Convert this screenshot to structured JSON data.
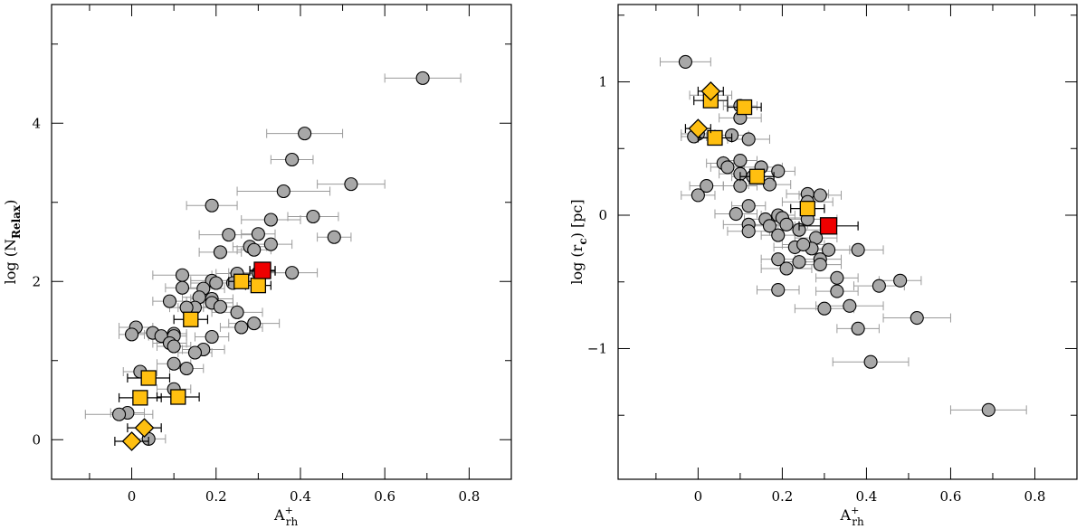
{
  "colors": {
    "grey": "#a8a8a8",
    "orange": "#ffbf10",
    "red": "#ee0000",
    "errgrey": "#9a9a9a"
  },
  "chart_data": [
    {
      "type": "scatter",
      "id": "left",
      "xlabel_main": "A",
      "xlabel_sup": "+",
      "xlabel_sub": "rh",
      "ylabel_pre": "log (N",
      "ylabel_sub": "Relax",
      "ylabel_post": ")",
      "xlim": [
        -0.19,
        0.9
      ],
      "ylim": [
        -0.5,
        5.5
      ],
      "xticks": [
        0,
        0.2,
        0.4,
        0.6,
        0.8
      ],
      "xtick_labels": [
        "0",
        "0.2",
        "0.4",
        "0.6",
        "0.8"
      ],
      "xminor": [
        -0.1,
        0.1,
        0.3,
        0.5,
        0.7,
        0.9
      ],
      "yticks": [
        0,
        2,
        4
      ],
      "ytick_labels": [
        "0",
        "2",
        "4"
      ],
      "yminor": [
        1,
        3,
        5
      ],
      "grey_points": [
        [
          0.69,
          4.57,
          0.09
        ],
        [
          0.41,
          3.87,
          0.09
        ],
        [
          0.38,
          3.54,
          0.05
        ],
        [
          0.36,
          3.14,
          0.11
        ],
        [
          0.52,
          3.23,
          0.08
        ],
        [
          0.19,
          2.96,
          0.06
        ],
        [
          0.33,
          2.78,
          0.07
        ],
        [
          0.43,
          2.82,
          0.06
        ],
        [
          0.48,
          2.56,
          0.04
        ],
        [
          0.33,
          2.47,
          0.05
        ],
        [
          0.3,
          2.6,
          0.04
        ],
        [
          0.28,
          2.44,
          0.04
        ],
        [
          0.29,
          2.4,
          0.04
        ],
        [
          0.23,
          2.59,
          0.07
        ],
        [
          0.21,
          2.37,
          0.05
        ],
        [
          0.38,
          2.11,
          0.06
        ],
        [
          0.3,
          2.11,
          0.07
        ],
        [
          0.25,
          2.1,
          0.05
        ],
        [
          0.24,
          1.98,
          0.06
        ],
        [
          0.12,
          2.08,
          0.07
        ],
        [
          0.19,
          2.01,
          0.05
        ],
        [
          0.2,
          1.98,
          0.06
        ],
        [
          0.17,
          1.91,
          0.05
        ],
        [
          0.19,
          1.78,
          0.05
        ],
        [
          0.12,
          1.92,
          0.04
        ],
        [
          0.16,
          1.8,
          0.04
        ],
        [
          0.19,
          1.73,
          0.05
        ],
        [
          0.09,
          1.75,
          0.04
        ],
        [
          0.21,
          1.68,
          0.04
        ],
        [
          0.15,
          1.67,
          0.04
        ],
        [
          0.13,
          1.67,
          0.04
        ],
        [
          0.25,
          1.61,
          0.06
        ],
        [
          0.29,
          1.47,
          0.06
        ],
        [
          0.26,
          1.42,
          0.05
        ],
        [
          0.01,
          1.42,
          0.04
        ],
        [
          0.05,
          1.35,
          0.04
        ],
        [
          0.07,
          1.31,
          0.03
        ],
        [
          0.1,
          1.34,
          0.03
        ],
        [
          0.0,
          1.33,
          0.03
        ],
        [
          0.1,
          1.31,
          0.03
        ],
        [
          0.19,
          1.3,
          0.04
        ],
        [
          0.09,
          1.22,
          0.04
        ],
        [
          0.17,
          1.14,
          0.05
        ],
        [
          0.15,
          1.1,
          0.04
        ],
        [
          0.1,
          1.18,
          0.04
        ],
        [
          0.1,
          0.96,
          0.04
        ],
        [
          0.13,
          0.9,
          0.04
        ],
        [
          0.02,
          0.86,
          0.04
        ],
        [
          0.1,
          0.64,
          0.04
        ],
        [
          -0.01,
          0.34,
          0.04
        ],
        [
          -0.03,
          0.32,
          0.08
        ],
        [
          0.04,
          0.01,
          0.04
        ]
      ],
      "orange_squares": [
        [
          0.31,
          2.13,
          0.03
        ],
        [
          0.26,
          2.0,
          0.03
        ],
        [
          0.3,
          1.95,
          0.03
        ],
        [
          0.14,
          1.52,
          0.04
        ],
        [
          0.04,
          0.78,
          0.05
        ],
        [
          0.02,
          0.53,
          0.05
        ],
        [
          0.11,
          0.54,
          0.05
        ]
      ],
      "orange_diamonds": [
        [
          0.03,
          0.15,
          0.04
        ],
        [
          0.0,
          -0.02,
          0.04
        ]
      ],
      "red_squares": [
        [
          0.31,
          2.14,
          0.03
        ]
      ]
    },
    {
      "type": "scatter",
      "id": "right",
      "xlabel_main": "A",
      "xlabel_sup": "+",
      "xlabel_sub": "rh",
      "ylabel_pre": "log (r",
      "ylabel_sub": "c",
      "ylabel_post": ") [pc]",
      "xlim": [
        -0.19,
        0.9
      ],
      "ylim": [
        -1.98,
        1.58
      ],
      "xticks": [
        0,
        0.2,
        0.4,
        0.6,
        0.8
      ],
      "xtick_labels": [
        "0",
        "0.2",
        "0.4",
        "0.6",
        "0.8"
      ],
      "xminor": [
        -0.1,
        0.1,
        0.3,
        0.5,
        0.7,
        0.9
      ],
      "yticks": [
        -1,
        0,
        1
      ],
      "ytick_labels": [
        "−1",
        "0",
        "1"
      ],
      "yminor": [
        -1.5,
        -0.5,
        0.5,
        1.5
      ],
      "grey_points": [
        [
          -0.03,
          1.15,
          0.06
        ],
        [
          0.03,
          0.9,
          0.05
        ],
        [
          0.1,
          0.73,
          0.05
        ],
        [
          0.1,
          0.82,
          0.04
        ],
        [
          0.08,
          0.6,
          0.04
        ],
        [
          0.0,
          0.61,
          0.04
        ],
        [
          -0.01,
          0.59,
          0.03
        ],
        [
          0.12,
          0.57,
          0.05
        ],
        [
          0.06,
          0.39,
          0.04
        ],
        [
          0.07,
          0.36,
          0.04
        ],
        [
          0.1,
          0.41,
          0.04
        ],
        [
          0.1,
          0.31,
          0.05
        ],
        [
          0.15,
          0.36,
          0.05
        ],
        [
          0.19,
          0.33,
          0.04
        ],
        [
          0.13,
          0.29,
          0.05
        ],
        [
          0.17,
          0.23,
          0.05
        ],
        [
          0.02,
          0.22,
          0.04
        ],
        [
          0.1,
          0.22,
          0.04
        ],
        [
          0.0,
          0.15,
          0.04
        ],
        [
          0.26,
          0.16,
          0.05
        ],
        [
          0.29,
          0.15,
          0.05
        ],
        [
          0.26,
          0.1,
          0.06
        ],
        [
          0.12,
          0.07,
          0.04
        ],
        [
          0.09,
          0.01,
          0.05
        ],
        [
          0.19,
          0.0,
          0.04
        ],
        [
          0.2,
          -0.02,
          0.05
        ],
        [
          0.16,
          -0.03,
          0.05
        ],
        [
          0.26,
          -0.03,
          0.07
        ],
        [
          0.12,
          -0.07,
          0.06
        ],
        [
          0.17,
          -0.08,
          0.06
        ],
        [
          0.21,
          -0.07,
          0.05
        ],
        [
          0.24,
          -0.11,
          0.05
        ],
        [
          0.12,
          -0.12,
          0.05
        ],
        [
          0.19,
          -0.15,
          0.04
        ],
        [
          0.28,
          -0.17,
          0.05
        ],
        [
          0.23,
          -0.24,
          0.05
        ],
        [
          0.27,
          -0.25,
          0.04
        ],
        [
          0.25,
          -0.22,
          0.05
        ],
        [
          0.31,
          -0.26,
          0.05
        ],
        [
          0.38,
          -0.26,
          0.06
        ],
        [
          0.19,
          -0.33,
          0.04
        ],
        [
          0.29,
          -0.33,
          0.05
        ],
        [
          0.24,
          -0.35,
          0.05
        ],
        [
          0.29,
          -0.37,
          0.05
        ],
        [
          0.21,
          -0.4,
          0.06
        ],
        [
          0.33,
          -0.47,
          0.05
        ],
        [
          0.48,
          -0.49,
          0.05
        ],
        [
          0.43,
          -0.53,
          0.06
        ],
        [
          0.19,
          -0.56,
          0.05
        ],
        [
          0.33,
          -0.57,
          0.05
        ],
        [
          0.36,
          -0.68,
          0.08
        ],
        [
          0.3,
          -0.7,
          0.07
        ],
        [
          0.52,
          -0.77,
          0.08
        ],
        [
          0.38,
          -0.85,
          0.05
        ],
        [
          0.41,
          -1.1,
          0.09
        ],
        [
          0.69,
          -1.46,
          0.09
        ]
      ],
      "orange_squares": [
        [
          0.11,
          0.81,
          0.04
        ],
        [
          0.03,
          0.86,
          0.04
        ],
        [
          0.04,
          0.58,
          0.04
        ],
        [
          0.14,
          0.29,
          0.04
        ],
        [
          0.26,
          0.05,
          0.04
        ]
      ],
      "orange_diamonds": [
        [
          0.03,
          0.93,
          0.03
        ],
        [
          0.0,
          0.65,
          0.03
        ]
      ],
      "red_squares": [
        [
          0.31,
          -0.08,
          0.07
        ]
      ]
    }
  ]
}
